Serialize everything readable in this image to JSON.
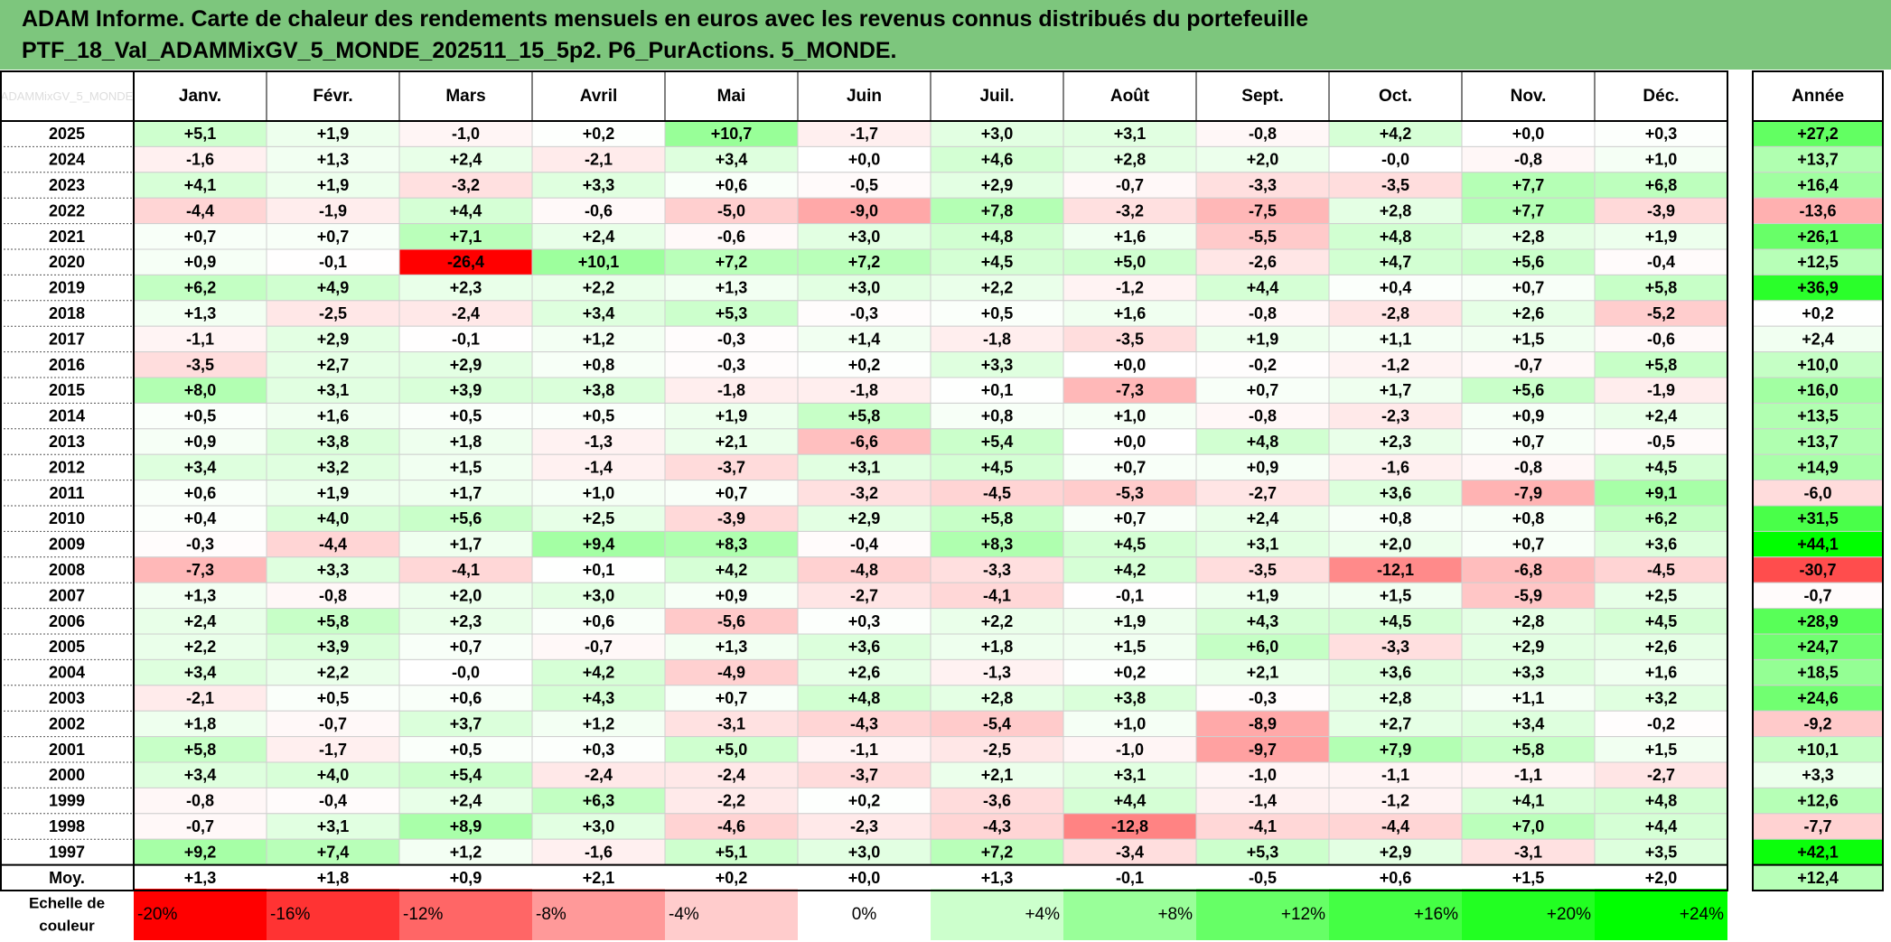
{
  "title": {
    "line1": "ADAM Informe. Carte de chaleur des rendements mensuels en euros avec les revenus connus distribués du portefeuille",
    "line2": "PTF_18_Val_ADAMMixGV_5_MONDE_202511_15_5p2. P6_PurActions. 5_MONDE."
  },
  "corner_label": "ADAMMixGV_5_MONDE",
  "chart_data": {
    "type": "heatmap",
    "columns": [
      "Janv.",
      "Févr.",
      "Mars",
      "Avril",
      "Mai",
      "Juin",
      "Juil.",
      "Août",
      "Sept.",
      "Oct.",
      "Nov.",
      "Déc."
    ],
    "year_column": "Année",
    "rows": [
      {
        "label": "2025",
        "values": [
          "+5,1",
          "+1,9",
          "-1,0",
          "+0,2",
          "+10,7",
          "-1,7",
          "+3,0",
          "+3,1",
          "-0,8",
          "+4,2",
          "+0,0",
          "+0,3"
        ],
        "year": "+27,2"
      },
      {
        "label": "2024",
        "values": [
          "-1,6",
          "+1,3",
          "+2,4",
          "-2,1",
          "+3,4",
          "+0,0",
          "+4,6",
          "+2,8",
          "+2,0",
          "-0,0",
          "-0,8",
          "+1,0"
        ],
        "year": "+13,7"
      },
      {
        "label": "2023",
        "values": [
          "+4,1",
          "+1,9",
          "-3,2",
          "+3,3",
          "+0,6",
          "-0,5",
          "+2,9",
          "-0,7",
          "-3,3",
          "-3,5",
          "+7,7",
          "+6,8"
        ],
        "year": "+16,4"
      },
      {
        "label": "2022",
        "values": [
          "-4,4",
          "-1,9",
          "+4,4",
          "-0,6",
          "-5,0",
          "-9,0",
          "+7,8",
          "-3,2",
          "-7,5",
          "+2,8",
          "+7,7",
          "-3,9"
        ],
        "year": "-13,6"
      },
      {
        "label": "2021",
        "values": [
          "+0,7",
          "+0,7",
          "+7,1",
          "+2,4",
          "-0,6",
          "+3,0",
          "+4,8",
          "+1,6",
          "-5,5",
          "+4,8",
          "+2,8",
          "+1,9"
        ],
        "year": "+26,1"
      },
      {
        "label": "2020",
        "values": [
          "+0,9",
          "-0,1",
          "-26,4",
          "+10,1",
          "+7,2",
          "+7,2",
          "+4,5",
          "+5,0",
          "-2,6",
          "+4,7",
          "+5,6",
          "-0,4"
        ],
        "year": "+12,5"
      },
      {
        "label": "2019",
        "values": [
          "+6,2",
          "+4,9",
          "+2,3",
          "+2,2",
          "+1,3",
          "+3,0",
          "+2,2",
          "-1,2",
          "+4,4",
          "+0,4",
          "+0,7",
          "+5,8"
        ],
        "year": "+36,9"
      },
      {
        "label": "2018",
        "values": [
          "+1,3",
          "-2,5",
          "-2,4",
          "+3,4",
          "+5,3",
          "-0,3",
          "+0,5",
          "+1,6",
          "-0,8",
          "-2,8",
          "+2,6",
          "-5,2"
        ],
        "year": "+0,2"
      },
      {
        "label": "2017",
        "values": [
          "-1,1",
          "+2,9",
          "-0,1",
          "+1,2",
          "-0,3",
          "+1,4",
          "-1,8",
          "-3,5",
          "+1,9",
          "+1,1",
          "+1,5",
          "-0,6"
        ],
        "year": "+2,4"
      },
      {
        "label": "2016",
        "values": [
          "-3,5",
          "+2,7",
          "+2,9",
          "+0,8",
          "-0,3",
          "+0,2",
          "+3,3",
          "+0,0",
          "-0,2",
          "-1,2",
          "-0,7",
          "+5,8"
        ],
        "year": "+10,0"
      },
      {
        "label": "2015",
        "values": [
          "+8,0",
          "+3,1",
          "+3,9",
          "+3,8",
          "-1,8",
          "-1,8",
          "+0,1",
          "-7,3",
          "+0,7",
          "+1,7",
          "+5,6",
          "-1,9"
        ],
        "year": "+16,0"
      },
      {
        "label": "2014",
        "values": [
          "+0,5",
          "+1,6",
          "+0,5",
          "+0,5",
          "+1,9",
          "+5,8",
          "+0,8",
          "+1,0",
          "-0,8",
          "-2,3",
          "+0,9",
          "+2,4"
        ],
        "year": "+13,5"
      },
      {
        "label": "2013",
        "values": [
          "+0,9",
          "+3,8",
          "+1,8",
          "-1,3",
          "+2,1",
          "-6,6",
          "+5,4",
          "+0,0",
          "+4,8",
          "+2,3",
          "+0,7",
          "-0,5"
        ],
        "year": "+13,7"
      },
      {
        "label": "2012",
        "values": [
          "+3,4",
          "+3,2",
          "+1,5",
          "-1,4",
          "-3,7",
          "+3,1",
          "+4,5",
          "+0,7",
          "+0,9",
          "-1,6",
          "-0,8",
          "+4,5"
        ],
        "year": "+14,9"
      },
      {
        "label": "2011",
        "values": [
          "+0,6",
          "+1,9",
          "+1,7",
          "+1,0",
          "+0,7",
          "-3,2",
          "-4,5",
          "-5,3",
          "-2,7",
          "+3,6",
          "-7,9",
          "+9,1"
        ],
        "year": "-6,0"
      },
      {
        "label": "2010",
        "values": [
          "+0,4",
          "+4,0",
          "+5,6",
          "+2,5",
          "-3,9",
          "+2,9",
          "+5,8",
          "+0,7",
          "+2,4",
          "+0,8",
          "+0,8",
          "+6,2"
        ],
        "year": "+31,5"
      },
      {
        "label": "2009",
        "values": [
          "-0,3",
          "-4,4",
          "+1,7",
          "+9,4",
          "+8,3",
          "-0,4",
          "+8,3",
          "+4,5",
          "+3,1",
          "+2,0",
          "+0,7",
          "+3,6"
        ],
        "year": "+44,1"
      },
      {
        "label": "2008",
        "values": [
          "-7,3",
          "+3,3",
          "-4,1",
          "+0,1",
          "+4,2",
          "-4,8",
          "-3,3",
          "+4,2",
          "-3,5",
          "-12,1",
          "-6,8",
          "-4,5"
        ],
        "year": "-30,7"
      },
      {
        "label": "2007",
        "values": [
          "+1,3",
          "-0,8",
          "+2,0",
          "+3,0",
          "+0,9",
          "-2,7",
          "-4,1",
          "-0,1",
          "+1,9",
          "+1,5",
          "-5,9",
          "+2,5"
        ],
        "year": "-0,7"
      },
      {
        "label": "2006",
        "values": [
          "+2,4",
          "+5,8",
          "+2,3",
          "+0,6",
          "-5,6",
          "+0,3",
          "+2,2",
          "+1,9",
          "+4,3",
          "+4,5",
          "+2,8",
          "+4,5"
        ],
        "year": "+28,9"
      },
      {
        "label": "2005",
        "values": [
          "+2,2",
          "+3,9",
          "+0,7",
          "-0,7",
          "+1,3",
          "+3,6",
          "+1,8",
          "+1,5",
          "+6,0",
          "-3,3",
          "+2,9",
          "+2,6"
        ],
        "year": "+24,7"
      },
      {
        "label": "2004",
        "values": [
          "+3,4",
          "+2,2",
          "-0,0",
          "+4,2",
          "-4,9",
          "+2,6",
          "-1,3",
          "+0,2",
          "+2,1",
          "+3,6",
          "+3,3",
          "+1,6"
        ],
        "year": "+18,5"
      },
      {
        "label": "2003",
        "values": [
          "-2,1",
          "+0,5",
          "+0,6",
          "+4,3",
          "+0,7",
          "+4,8",
          "+2,8",
          "+3,8",
          "-0,3",
          "+2,8",
          "+1,1",
          "+3,2"
        ],
        "year": "+24,6"
      },
      {
        "label": "2002",
        "values": [
          "+1,8",
          "-0,7",
          "+3,7",
          "+1,2",
          "-3,1",
          "-4,3",
          "-5,4",
          "+1,0",
          "-8,9",
          "+2,7",
          "+3,4",
          "-0,2"
        ],
        "year": "-9,2"
      },
      {
        "label": "2001",
        "values": [
          "+5,8",
          "-1,7",
          "+0,5",
          "+0,3",
          "+5,0",
          "-1,1",
          "-2,5",
          "-1,0",
          "-9,7",
          "+7,9",
          "+5,8",
          "+1,5"
        ],
        "year": "+10,1"
      },
      {
        "label": "2000",
        "values": [
          "+3,4",
          "+4,0",
          "+5,4",
          "-2,4",
          "-2,4",
          "-3,7",
          "+2,1",
          "+3,1",
          "-1,0",
          "-1,1",
          "-1,1",
          "-2,7"
        ],
        "year": "+3,3"
      },
      {
        "label": "1999",
        "values": [
          "-0,8",
          "-0,4",
          "+2,4",
          "+6,3",
          "-2,2",
          "+0,2",
          "-3,6",
          "+4,4",
          "-1,4",
          "-1,2",
          "+4,1",
          "+4,8"
        ],
        "year": "+12,6"
      },
      {
        "label": "1998",
        "values": [
          "-0,7",
          "+3,1",
          "+8,9",
          "+3,0",
          "-4,6",
          "-2,3",
          "-4,3",
          "-12,8",
          "-4,1",
          "-4,4",
          "+7,0",
          "+4,4"
        ],
        "year": "-7,7"
      },
      {
        "label": "1997",
        "values": [
          "+9,2",
          "+7,4",
          "+1,2",
          "-1,6",
          "+5,1",
          "+3,0",
          "+7,2",
          "-3,4",
          "+5,3",
          "+2,9",
          "-3,1",
          "+3,5"
        ],
        "year": "+42,1"
      }
    ],
    "average_row": {
      "label": "Moy.",
      "values": [
        "+1,3",
        "+1,8",
        "+0,9",
        "+2,1",
        "+0,2",
        "+0,0",
        "+1,3",
        "-0,1",
        "-0,5",
        "+0,6",
        "+1,5",
        "+2,0"
      ],
      "year": "+12,4"
    },
    "color_scale": {
      "label": "Echelle de couleur",
      "steps": [
        {
          "label": "-20%",
          "value": -20,
          "color": "#ff0000"
        },
        {
          "label": "-16%",
          "value": -16,
          "color": "#ff3333"
        },
        {
          "label": "-12%",
          "value": -12,
          "color": "#ff6666"
        },
        {
          "label": "-8%",
          "value": -8,
          "color": "#ff9999"
        },
        {
          "label": "-4%",
          "value": -4,
          "color": "#ffcccc"
        },
        {
          "label": "0%",
          "value": 0,
          "color": "#ffffff"
        },
        {
          "label": "+4%",
          "value": 4,
          "color": "#ccffcc"
        },
        {
          "label": "+8%",
          "value": 8,
          "color": "#99ff99"
        },
        {
          "label": "+12%",
          "value": 12,
          "color": "#66ff66"
        },
        {
          "label": "+16%",
          "value": 16,
          "color": "#44ff44"
        },
        {
          "label": "+20%",
          "value": 20,
          "color": "#22ff22"
        },
        {
          "label": "+24%",
          "value": 24,
          "color": "#00ff00"
        }
      ]
    },
    "colors": {
      "header_bg": "#7dc67d",
      "negative_max": "#ff0000",
      "positive_max": "#00ff00",
      "neutral": "#ffffff"
    }
  }
}
